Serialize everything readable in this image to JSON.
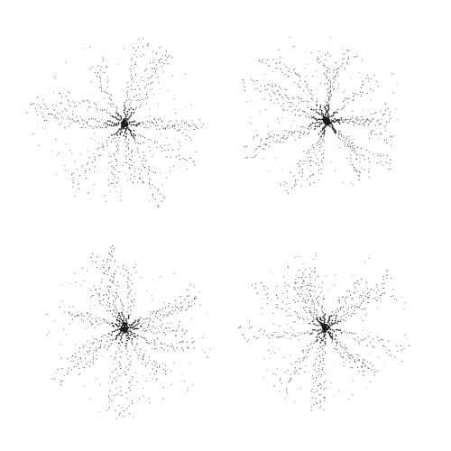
{
  "image": {
    "background_color": "#ffffff",
    "dot_color": "#1a1a1a",
    "panels": [
      {
        "name": "top-left",
        "arms": 14,
        "spread": "left-heavy"
      },
      {
        "name": "top-right",
        "arms": 14,
        "spread": "top-left"
      },
      {
        "name": "bottom-left",
        "arms": 14,
        "spread": "bottom-right"
      },
      {
        "name": "bottom-right",
        "arms": 14,
        "spread": "even"
      }
    ]
  }
}
